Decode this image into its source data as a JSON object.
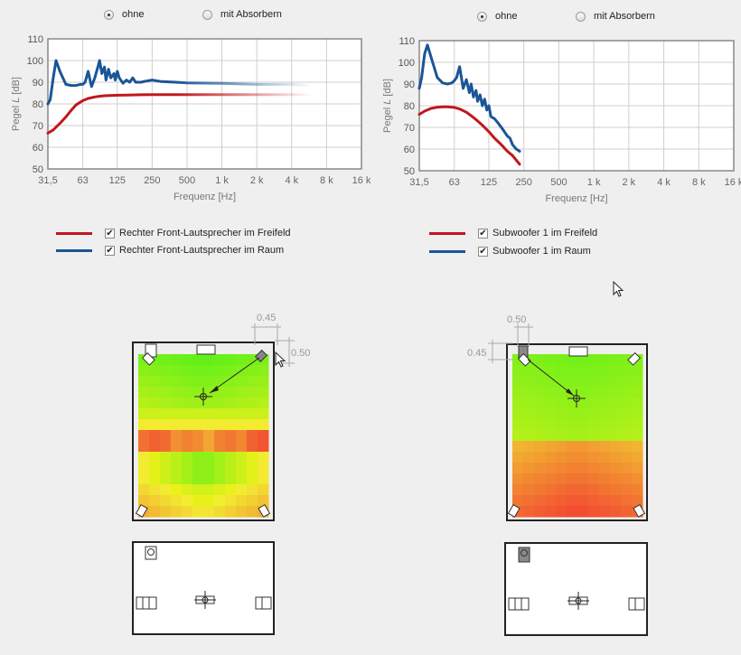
{
  "colors": {
    "freifeld": "#c0171c",
    "raum": "#1a5597",
    "plot_border": "#888888",
    "grid": "#cfcfcf"
  },
  "left": {
    "radio": [
      {
        "label": "ohne",
        "selected": true
      },
      {
        "label": "mit Absorbern",
        "selected": false
      }
    ],
    "legend": [
      {
        "label": "Rechter Front-Lautsprecher im Freifeld",
        "checked": true,
        "series": "freifeld"
      },
      {
        "label": "Rechter Front-Lautsprecher im Raum",
        "checked": true,
        "series": "raum"
      }
    ],
    "dims": {
      "top_value": "0.45",
      "side_value": "0.50"
    }
  },
  "right": {
    "radio": [
      {
        "label": "ohne",
        "selected": true
      },
      {
        "label": "mit Absorbern",
        "selected": false
      }
    ],
    "legend": [
      {
        "label": "Subwoofer 1 im Freifeld",
        "checked": true,
        "series": "freifeld"
      },
      {
        "label": "Subwoofer 1 im Raum",
        "checked": true,
        "series": "raum"
      }
    ],
    "dims": {
      "top_value": "0.50",
      "side_value": "0.45"
    }
  },
  "chart_data": [
    {
      "type": "line",
      "xlabel": "Frequenz [Hz]",
      "ylabel": "Pegel",
      "ylabel_italic": "L",
      "ylabel_unit": "[dB]",
      "x_scale": "log",
      "x_ticks": [
        "31,5",
        "63",
        "125",
        "250",
        "500",
        "1 k",
        "2 k",
        "4 k",
        "8 k",
        "16 k"
      ],
      "y_ticks": [
        50,
        60,
        70,
        80,
        90,
        100,
        110
      ],
      "ylim": [
        50,
        110
      ],
      "grid": true,
      "series": [
        {
          "name": "Rechter Front-Lautsprecher im Freifeld",
          "color_key": "freifeld",
          "fade_tail": true,
          "x": [
            31.5,
            35,
            40,
            45,
            50,
            55,
            63,
            70,
            80,
            90,
            100,
            125,
            150,
            200,
            250,
            300,
            500,
            1000,
            2000,
            4000,
            6000
          ],
          "y": [
            66.5,
            68,
            71,
            74,
            77,
            79.5,
            81.5,
            82.5,
            83.2,
            83.6,
            83.8,
            84,
            84.1,
            84.2,
            84.3,
            84.3,
            84.3,
            84.3,
            84.3,
            84.3,
            84.3
          ]
        },
        {
          "name": "Rechter Front-Lautsprecher im Raum",
          "color_key": "raum",
          "fade_tail": true,
          "x": [
            31.5,
            33,
            35,
            37,
            40,
            45,
            50,
            55,
            60,
            63,
            66,
            70,
            75,
            80,
            85,
            88,
            92,
            97,
            100,
            105,
            110,
            117,
            120,
            125,
            130,
            140,
            150,
            160,
            170,
            180,
            200,
            220,
            250,
            300,
            400,
            500,
            1000,
            2000,
            4000,
            6000
          ],
          "y": [
            80,
            82,
            92,
            100,
            95,
            89,
            88.5,
            88.5,
            89,
            89,
            90,
            95,
            88,
            92,
            97,
            100,
            94,
            97,
            91,
            96,
            92,
            94,
            91,
            95,
            92,
            89.5,
            91,
            90,
            92,
            90,
            90,
            90.5,
            91,
            90.3,
            90,
            89.7,
            89.5,
            89,
            89,
            88.5
          ]
        }
      ]
    },
    {
      "type": "line",
      "xlabel": "Frequenz [Hz]",
      "ylabel": "Pegel",
      "ylabel_italic": "L",
      "ylabel_unit": "[dB]",
      "x_scale": "log",
      "x_ticks": [
        "31,5",
        "63",
        "125",
        "250",
        "500",
        "1 k",
        "2 k",
        "4 k",
        "8 k",
        "16 k"
      ],
      "y_ticks": [
        50,
        60,
        70,
        80,
        90,
        100,
        110
      ],
      "ylim": [
        50,
        110
      ],
      "grid": true,
      "series": [
        {
          "name": "Subwoofer 1 im Freifeld",
          "color_key": "freifeld",
          "fade_tail": false,
          "x": [
            31.5,
            35,
            40,
            45,
            50,
            55,
            63,
            70,
            80,
            90,
            100,
            110,
            125,
            140,
            160,
            180,
            200,
            230
          ],
          "y": [
            76,
            77.5,
            78.8,
            79.3,
            79.5,
            79.5,
            79.2,
            78.5,
            77,
            75,
            73,
            71,
            68,
            65,
            62,
            59,
            57,
            53
          ]
        },
        {
          "name": "Subwoofer 1 im Raum",
          "color_key": "raum",
          "fade_tail": false,
          "x": [
            31.5,
            33,
            35,
            37,
            40,
            45,
            50,
            55,
            60,
            63,
            66,
            70,
            72,
            75,
            80,
            85,
            88,
            92,
            97,
            100,
            105,
            110,
            115,
            120,
            125,
            130,
            140,
            150,
            160,
            170,
            180,
            190,
            200,
            215,
            230
          ],
          "y": [
            88,
            93,
            104,
            108,
            102,
            93,
            90.5,
            90,
            90.5,
            91.5,
            93,
            98,
            94,
            88,
            92,
            86,
            90,
            84,
            87,
            82,
            85,
            80,
            83,
            78,
            80,
            75,
            74,
            72,
            70,
            68,
            66,
            65,
            62,
            60,
            59
          ]
        }
      ]
    }
  ]
}
